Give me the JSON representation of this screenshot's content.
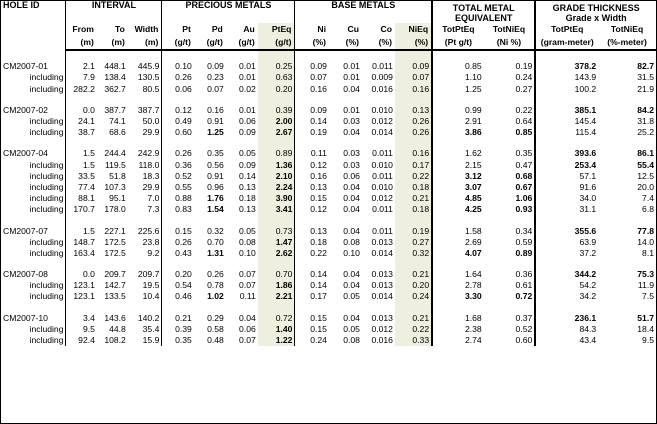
{
  "headers": {
    "interval": "INTERVAL",
    "precious": "PRECIOUS METALS",
    "base": "BASE METALS",
    "total_line1": "TOTAL METAL",
    "total_line2": "EQUIVALENT",
    "grade_line1": "GRADE THICKNESS",
    "grade_line2": "Grade x Width",
    "hole_id": "HOLE ID",
    "cols": [
      "From",
      "To",
      "Width",
      "Pt",
      "Pd",
      "Au",
      "PtEq",
      "Ni",
      "Cu",
      "Co",
      "NiEq",
      "TotPtEq",
      "TotNiEq",
      "TotPtEq",
      "TotNiEq"
    ],
    "units": [
      "(m)",
      "(m)",
      "(m)",
      "(g/t)",
      "(g/t)",
      "(g/t)",
      "(g/t)",
      "(%)",
      "(%)",
      "(%)",
      "(%)",
      "(Pt g/t)",
      "(Ni %)",
      "(gram-meter)",
      "(%-meter)"
    ]
  },
  "holes": [
    {
      "id": "CM2007-01",
      "rows": [
        {
          "label": "",
          "vals": [
            "2.1",
            "448.1",
            "445.9",
            "0.10",
            "0.09",
            "0.01",
            "0.25",
            "0.09",
            "0.01",
            "0.011",
            "0.09",
            "0.85",
            "0.19",
            "378.2",
            "82.7"
          ],
          "bold": [
            13,
            14
          ]
        },
        {
          "label": "including",
          "vals": [
            "7.9",
            "138.4",
            "130.5",
            "0.26",
            "0.23",
            "0.01",
            "0.63",
            "0.07",
            "0.01",
            "0.009",
            "0.07",
            "1.10",
            "0.24",
            "143.9",
            "31.5"
          ],
          "bold": []
        },
        {
          "label": "including",
          "vals": [
            "282.2",
            "362.7",
            "80.5",
            "0.06",
            "0.07",
            "0.02",
            "0.20",
            "0.16",
            "0.04",
            "0.016",
            "0.16",
            "1.25",
            "0.27",
            "100.2",
            "21.9"
          ],
          "bold": []
        }
      ]
    },
    {
      "id": "CM2007-02",
      "rows": [
        {
          "label": "",
          "vals": [
            "0.0",
            "387.7",
            "387.7",
            "0.12",
            "0.16",
            "0.01",
            "0.39",
            "0.09",
            "0.01",
            "0.010",
            "0.13",
            "0.99",
            "0.22",
            "385.1",
            "84.2"
          ],
          "bold": [
            13,
            14
          ]
        },
        {
          "label": "including",
          "vals": [
            "24.1",
            "74.1",
            "50.0",
            "0.49",
            "0.91",
            "0.06",
            "2.00",
            "0.14",
            "0.03",
            "0.012",
            "0.26",
            "2.91",
            "0.64",
            "145.4",
            "31.8"
          ],
          "bold": [
            6
          ]
        },
        {
          "label": "including",
          "vals": [
            "38.7",
            "68.6",
            "29.9",
            "0.60",
            "1.25",
            "0.09",
            "2.67",
            "0.19",
            "0.04",
            "0.014",
            "0.26",
            "3.86",
            "0.85",
            "115.4",
            "25.2"
          ],
          "bold": [
            4,
            6,
            11,
            12
          ]
        }
      ]
    },
    {
      "id": "CM2007-04",
      "rows": [
        {
          "label": "",
          "vals": [
            "1.5",
            "244.4",
            "242.9",
            "0.26",
            "0.35",
            "0.05",
            "0.89",
            "0.11",
            "0.03",
            "0.011",
            "0.16",
            "1.62",
            "0.35",
            "393.6",
            "86.1"
          ],
          "bold": [
            13,
            14
          ]
        },
        {
          "label": "including",
          "vals": [
            "1.5",
            "119.5",
            "118.0",
            "0.36",
            "0.56",
            "0.09",
            "1.36",
            "0.12",
            "0.03",
            "0.010",
            "0.17",
            "2.15",
            "0.47",
            "253.4",
            "55.4"
          ],
          "bold": [
            6,
            13,
            14
          ]
        },
        {
          "label": "including",
          "vals": [
            "33.5",
            "51.8",
            "18.3",
            "0.52",
            "0.91",
            "0.14",
            "2.10",
            "0.16",
            "0.06",
            "0.011",
            "0.22",
            "3.12",
            "0.68",
            "57.1",
            "12.5"
          ],
          "bold": [
            6,
            11,
            12
          ]
        },
        {
          "label": "including",
          "vals": [
            "77.4",
            "107.3",
            "29.9",
            "0.55",
            "0.96",
            "0.13",
            "2.24",
            "0.13",
            "0.04",
            "0.010",
            "0.18",
            "3.07",
            "0.67",
            "91.6",
            "20.0"
          ],
          "bold": [
            6,
            11,
            12
          ]
        },
        {
          "label": "including",
          "vals": [
            "88.1",
            "95.1",
            "7.0",
            "0.88",
            "1.76",
            "0.18",
            "3.90",
            "0.15",
            "0.04",
            "0.012",
            "0.21",
            "4.85",
            "1.06",
            "34.0",
            "7.4"
          ],
          "bold": [
            4,
            6,
            11,
            12
          ]
        },
        {
          "label": "including",
          "vals": [
            "170.7",
            "178.0",
            "7.3",
            "0.83",
            "1.54",
            "0.13",
            "3.41",
            "0.12",
            "0.04",
            "0.011",
            "0.18",
            "4.25",
            "0.93",
            "31.1",
            "6.8"
          ],
          "bold": [
            4,
            6,
            11,
            12
          ]
        }
      ]
    },
    {
      "id": "CM2007-07",
      "rows": [
        {
          "label": "",
          "vals": [
            "1.5",
            "227.1",
            "225.6",
            "0.15",
            "0.32",
            "0.05",
            "0.73",
            "0.13",
            "0.04",
            "0.011",
            "0.19",
            "1.58",
            "0.34",
            "355.6",
            "77.8"
          ],
          "bold": [
            13,
            14
          ]
        },
        {
          "label": "including",
          "vals": [
            "148.7",
            "172.5",
            "23.8",
            "0.26",
            "0.70",
            "0.08",
            "1.47",
            "0.18",
            "0.08",
            "0.013",
            "0.27",
            "2.69",
            "0.59",
            "63.9",
            "14.0"
          ],
          "bold": [
            6
          ]
        },
        {
          "label": "including",
          "vals": [
            "163.4",
            "172.5",
            "9.2",
            "0.43",
            "1.31",
            "0.10",
            "2.62",
            "0.22",
            "0.10",
            "0.014",
            "0.32",
            "4.07",
            "0.89",
            "37.2",
            "8.1"
          ],
          "bold": [
            4,
            6,
            11,
            12
          ]
        }
      ]
    },
    {
      "id": "CM2007-08",
      "rows": [
        {
          "label": "",
          "vals": [
            "0.0",
            "209.7",
            "209.7",
            "0.20",
            "0.26",
            "0.07",
            "0.70",
            "0.14",
            "0.04",
            "0.013",
            "0.21",
            "1.64",
            "0.36",
            "344.2",
            "75.3"
          ],
          "bold": [
            13,
            14
          ]
        },
        {
          "label": "including",
          "vals": [
            "123.1",
            "142.7",
            "19.5",
            "0.54",
            "0.78",
            "0.07",
            "1.86",
            "0.14",
            "0.04",
            "0.013",
            "0.20",
            "2.78",
            "0.61",
            "54.2",
            "11.9"
          ],
          "bold": [
            6
          ]
        },
        {
          "label": "including",
          "vals": [
            "123.1",
            "133.5",
            "10.4",
            "0.46",
            "1.02",
            "0.11",
            "2.21",
            "0.17",
            "0.05",
            "0.014",
            "0.24",
            "3.30",
            "0.72",
            "34.2",
            "7.5"
          ],
          "bold": [
            4,
            6,
            11,
            12
          ]
        }
      ]
    },
    {
      "id": "CM2007-10",
      "rows": [
        {
          "label": "",
          "vals": [
            "3.4",
            "143.6",
            "140.2",
            "0.21",
            "0.29",
            "0.04",
            "0.72",
            "0.15",
            "0.04",
            "0.013",
            "0.21",
            "1.68",
            "0.37",
            "236.1",
            "51.7"
          ],
          "bold": [
            13,
            14
          ]
        },
        {
          "label": "including",
          "vals": [
            "9.5",
            "44.8",
            "35.4",
            "0.39",
            "0.58",
            "0.06",
            "1.40",
            "0.15",
            "0.05",
            "0.012",
            "0.22",
            "2.38",
            "0.52",
            "84.3",
            "18.4"
          ],
          "bold": [
            6
          ]
        },
        {
          "label": "including",
          "vals": [
            "92.4",
            "108.2",
            "15.9",
            "0.35",
            "0.48",
            "0.07",
            "1.22",
            "0.24",
            "0.08",
            "0.016",
            "0.33",
            "2.74",
            "0.60",
            "43.4",
            "9.5"
          ],
          "bold": [
            6
          ]
        }
      ]
    }
  ]
}
